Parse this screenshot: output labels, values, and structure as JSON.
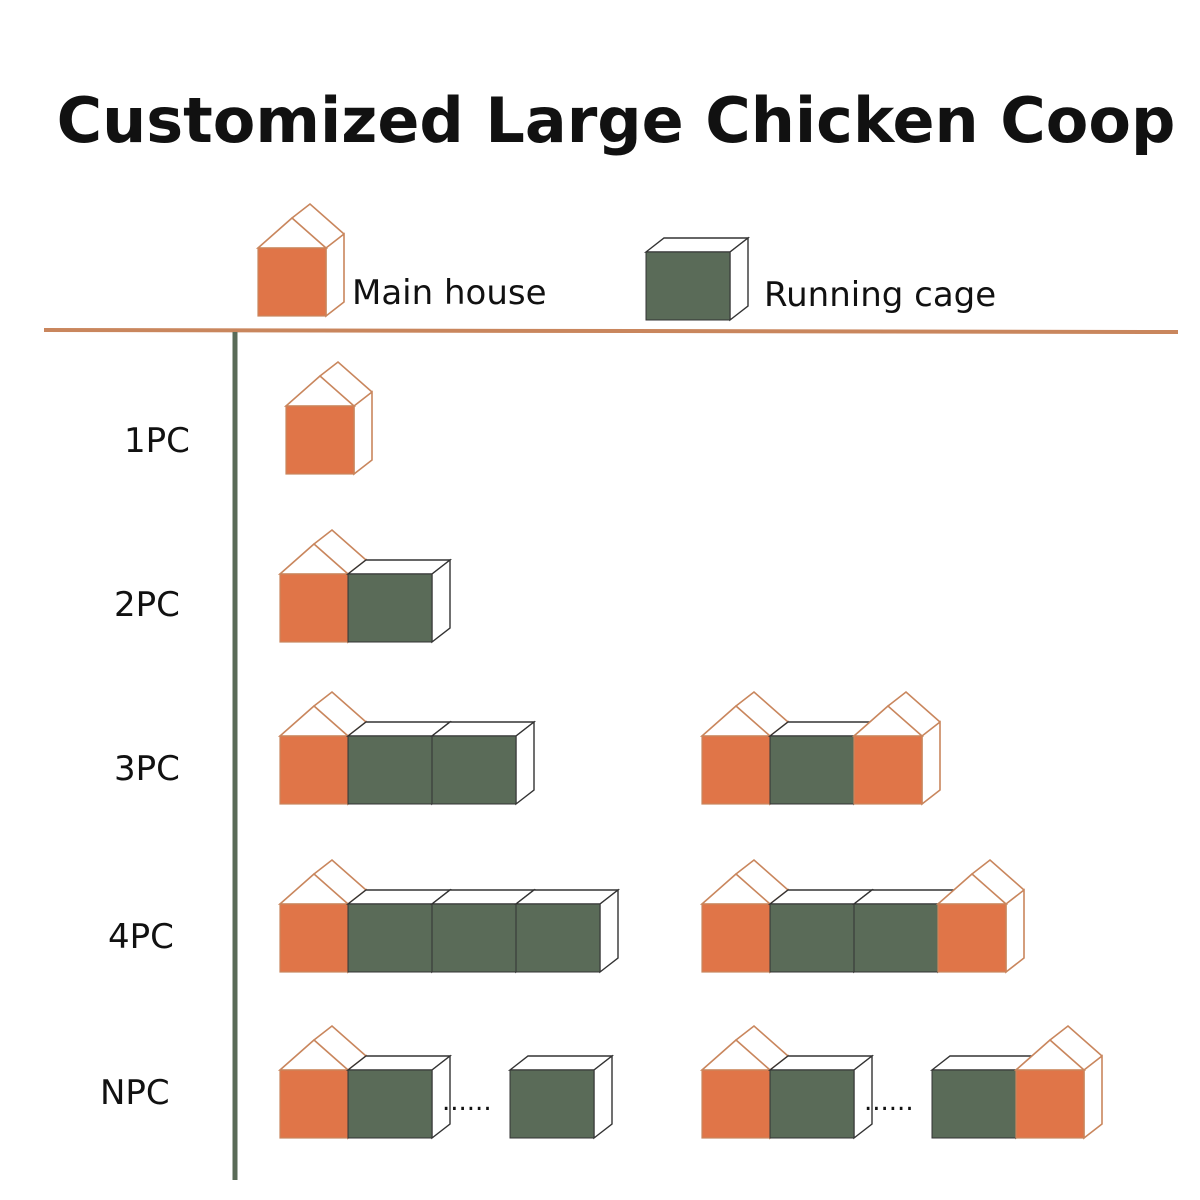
{
  "title": "Customized Large Chicken Coop",
  "legend": {
    "main_house_label": "Main house",
    "running_cage_label": "Running cage"
  },
  "colors": {
    "main_house": "#e07548",
    "running_cage": "#5a6b58",
    "outline_orange": "#c9865d",
    "outline_dark": "#333333",
    "divider_orange": "#c9865d",
    "axis_green": "#5a6b58"
  },
  "rows": [
    {
      "label": "1PC",
      "configs": [
        [
          "H"
        ]
      ]
    },
    {
      "label": "2PC",
      "configs": [
        [
          "H",
          "C"
        ]
      ]
    },
    {
      "label": "3PC",
      "configs": [
        [
          "H",
          "C",
          "C"
        ],
        [
          "H",
          "C",
          "H"
        ]
      ]
    },
    {
      "label": "4PC",
      "configs": [
        [
          "H",
          "C",
          "C",
          "C"
        ],
        [
          "H",
          "C",
          "C",
          "H"
        ]
      ]
    },
    {
      "label": "NPC",
      "configs": [
        [
          "H",
          "C",
          "...",
          "C"
        ],
        [
          "H",
          "C",
          "...",
          "C",
          "H"
        ]
      ]
    }
  ],
  "ellipsis": "......"
}
